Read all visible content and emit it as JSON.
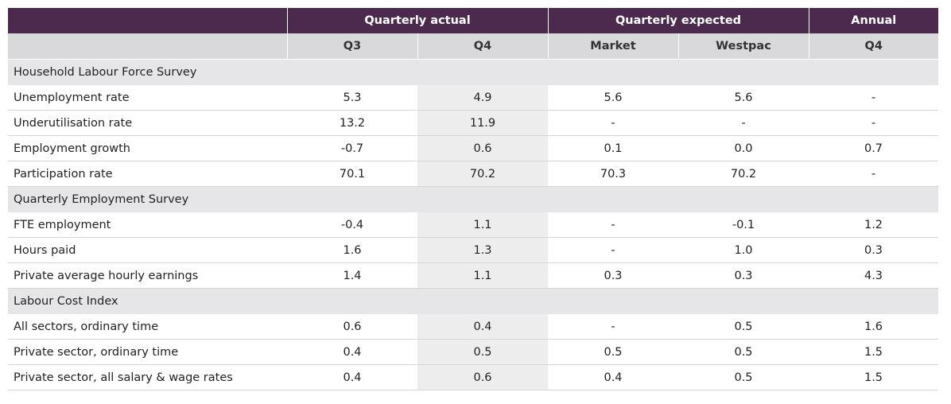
{
  "table": {
    "group_headers": [
      "",
      "Quarterly actual",
      "Quarterly expected",
      "Annual"
    ],
    "sub_headers": [
      "",
      "Q3",
      "Q4",
      "Market",
      "Westpac",
      "Q4"
    ],
    "sections": [
      {
        "title": "Household Labour Force Survey",
        "rows": [
          {
            "label": "Unemployment rate",
            "values": [
              "5.3",
              "4.9",
              "5.6",
              "5.6",
              "-"
            ]
          },
          {
            "label": "Underutilisation rate",
            "values": [
              "13.2",
              "11.9",
              "-",
              "-",
              "-"
            ]
          },
          {
            "label": "Employment growth",
            "values": [
              "-0.7",
              "0.6",
              "0.1",
              "0.0",
              "0.7"
            ]
          },
          {
            "label": "Participation rate",
            "values": [
              "70.1",
              "70.2",
              "70.3",
              "70.2",
              "-"
            ]
          }
        ]
      },
      {
        "title": "Quarterly Employment Survey",
        "rows": [
          {
            "label": "FTE employment",
            "values": [
              "-0.4",
              "1.1",
              "-",
              "-0.1",
              "1.2"
            ]
          },
          {
            "label": "Hours paid",
            "values": [
              "1.6",
              "1.3",
              "-",
              "1.0",
              "0.3"
            ]
          },
          {
            "label": "Private average hourly earnings",
            "values": [
              "1.4",
              "1.1",
              "0.3",
              "0.3",
              "4.3"
            ]
          }
        ]
      },
      {
        "title": "Labour Cost Index",
        "rows": [
          {
            "label": "All sectors, ordinary time",
            "values": [
              "0.6",
              "0.4",
              "-",
              "0.5",
              "1.6"
            ]
          },
          {
            "label": "Private sector, ordinary time",
            "values": [
              "0.4",
              "0.5",
              "0.5",
              "0.5",
              "1.5"
            ]
          },
          {
            "label": "Private sector, all salary & wage rates",
            "values": [
              "0.4",
              "0.6",
              "0.4",
              "0.5",
              "1.5"
            ]
          }
        ]
      }
    ]
  },
  "colors": {
    "header_bg": "#4b2a4e",
    "subheader_bg": "#d9d9db",
    "section_bg": "#e6e6e8",
    "highlight_col_bg": "#ededee"
  }
}
